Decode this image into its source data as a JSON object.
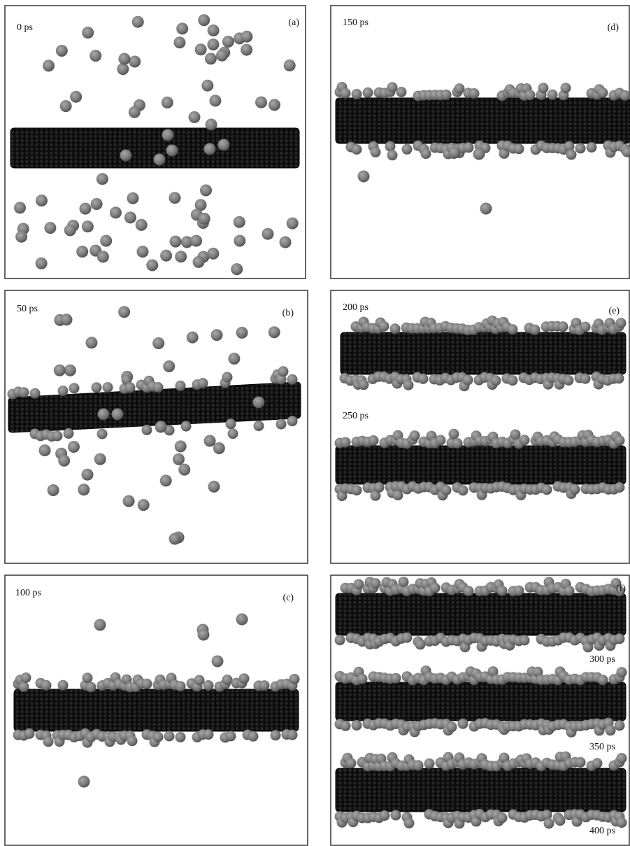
{
  "panels": [
    {
      "label": "(a)",
      "times": [
        "0 ps"
      ]
    },
    {
      "label": "(b)",
      "times": [
        "50 ps"
      ]
    },
    {
      "label": "(c)",
      "times": [
        "100 ps"
      ]
    },
    {
      "label": "(d)",
      "times": [
        "150 ps"
      ]
    },
    {
      "label": "(e)",
      "times": [
        "200 ps",
        "250 ps"
      ]
    },
    {
      "label": "(f)",
      "times": [
        "300 ps",
        "350 ps",
        "400 ps"
      ]
    }
  ]
}
